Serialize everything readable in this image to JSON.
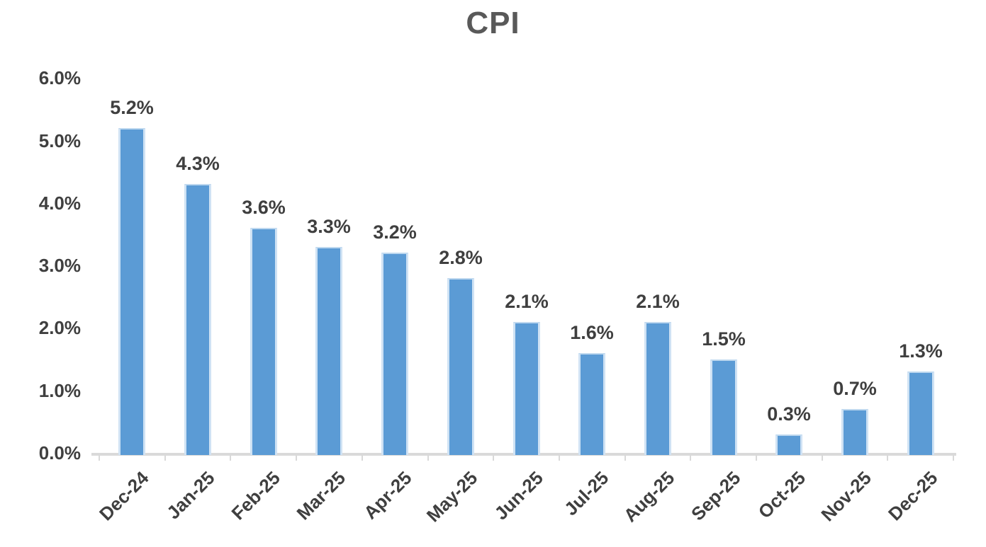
{
  "chart_data": {
    "type": "bar",
    "title": "CPI",
    "categories": [
      "Dec-24",
      "Jan-25",
      "Feb-25",
      "Mar-25",
      "Apr-25",
      "May-25",
      "Jun-25",
      "Jul-25",
      "Aug-25",
      "Sep-25",
      "Oct-25",
      "Nov-25",
      "Dec-25"
    ],
    "values": [
      5.2,
      4.3,
      3.6,
      3.3,
      3.2,
      2.8,
      2.1,
      1.6,
      2.1,
      1.5,
      0.3,
      0.7,
      1.3
    ],
    "data_labels": [
      "5.2%",
      "4.3%",
      "3.6%",
      "3.3%",
      "3.2%",
      "2.8%",
      "2.1%",
      "1.6%",
      "2.1%",
      "1.5%",
      "0.3%",
      "0.7%",
      "1.3%"
    ],
    "xlabel": "",
    "ylabel": "",
    "y_ticks": [
      "6.0%",
      "5.0%",
      "4.0%",
      "3.0%",
      "2.0%",
      "1.0%",
      "0.0%"
    ],
    "ylim": [
      0,
      6
    ],
    "y_tick_step": 1,
    "grid": false,
    "legend_position": "none",
    "x_tick_rotation": -45,
    "colors": {
      "bar_fill": "#5B9BD5",
      "bar_edge": "#cfe2f4",
      "title_text": "#595959",
      "label_text": "#3f3f3f",
      "axis_line": "#d9d9d9",
      "background": "#ffffff"
    }
  }
}
